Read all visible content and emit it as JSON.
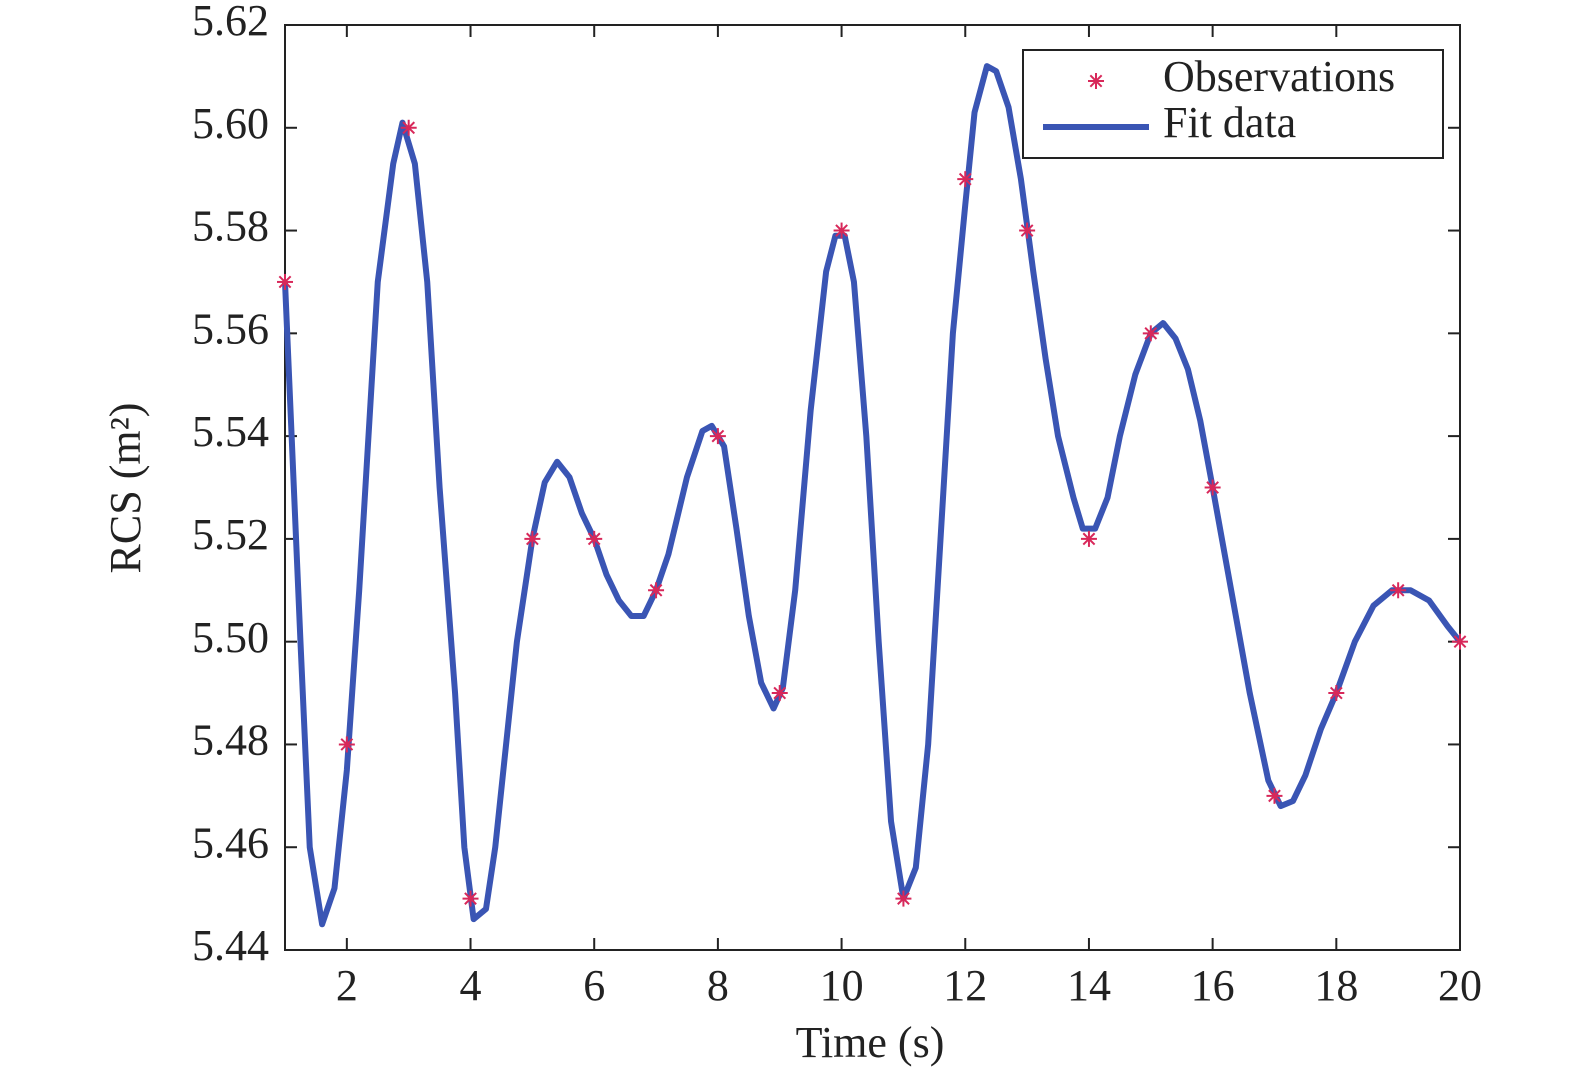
{
  "chart_data": {
    "type": "line",
    "xlabel": "Time (s)",
    "ylabel": "RCS (m²)",
    "xlim": [
      1,
      20
    ],
    "xticks": [
      2,
      4,
      6,
      8,
      10,
      12,
      14,
      16,
      18,
      20
    ],
    "ylim": [
      5.44,
      5.62
    ],
    "yticks": [
      5.44,
      5.46,
      5.48,
      {
        "value": 5.5,
        "label": "5.50"
      },
      5.52,
      5.54,
      5.56,
      5.58,
      {
        "value": 5.6,
        "label": "5.60"
      },
      5.62
    ],
    "legend": "upper right",
    "series": [
      {
        "name": "Observations",
        "type": "scatter",
        "color": "#d8285a",
        "x": [
          1,
          2,
          3,
          4,
          5,
          6,
          7,
          8,
          9,
          10,
          11,
          12,
          13,
          14,
          15,
          16,
          17,
          18,
          19,
          20
        ],
        "values": [
          5.57,
          5.48,
          5.6,
          5.45,
          5.52,
          5.52,
          5.51,
          5.54,
          5.49,
          5.58,
          5.45,
          5.59,
          5.58,
          5.52,
          5.56,
          5.53,
          5.47,
          5.49,
          5.51,
          5.5
        ]
      },
      {
        "name": "Fit data",
        "type": "line",
        "color": "#3a55b4",
        "x": [
          1,
          1.25,
          1.4,
          1.6,
          1.8,
          2,
          2.2,
          2.5,
          2.75,
          2.9,
          3.1,
          3.3,
          3.5,
          3.75,
          3.9,
          4.05,
          4.25,
          4.4,
          4.75,
          5,
          5.2,
          5.4,
          5.6,
          5.8,
          6,
          6.2,
          6.4,
          6.6,
          6.8,
          7,
          7.2,
          7.5,
          7.75,
          7.9,
          8.1,
          8.3,
          8.5,
          8.7,
          8.9,
          9.05,
          9.25,
          9.5,
          9.75,
          9.9,
          10.05,
          10.2,
          10.4,
          10.6,
          10.8,
          11,
          11.2,
          11.4,
          11.6,
          11.8,
          12,
          12.15,
          12.35,
          12.5,
          12.7,
          12.9,
          13.1,
          13.3,
          13.5,
          13.75,
          13.9,
          14.1,
          14.3,
          14.5,
          14.75,
          15,
          15.2,
          15.4,
          15.6,
          15.8,
          16,
          16.3,
          16.6,
          16.9,
          17.1,
          17.3,
          17.5,
          17.75,
          18,
          18.3,
          18.6,
          18.9,
          19.2,
          19.5,
          19.8,
          20
        ],
        "values": [
          5.57,
          5.5,
          5.46,
          5.445,
          5.452,
          5.475,
          5.51,
          5.57,
          5.593,
          5.601,
          5.593,
          5.57,
          5.53,
          5.49,
          5.46,
          5.446,
          5.448,
          5.46,
          5.5,
          5.52,
          5.531,
          5.535,
          5.532,
          5.525,
          5.52,
          5.513,
          5.508,
          5.505,
          5.505,
          5.51,
          5.517,
          5.532,
          5.541,
          5.542,
          5.538,
          5.522,
          5.505,
          5.492,
          5.487,
          5.491,
          5.51,
          5.545,
          5.572,
          5.579,
          5.579,
          5.57,
          5.54,
          5.5,
          5.465,
          5.45,
          5.456,
          5.48,
          5.52,
          5.56,
          5.585,
          5.603,
          5.612,
          5.611,
          5.604,
          5.59,
          5.572,
          5.555,
          5.54,
          5.528,
          5.522,
          5.522,
          5.528,
          5.54,
          5.552,
          5.56,
          5.562,
          5.559,
          5.553,
          5.543,
          5.53,
          5.51,
          5.49,
          5.473,
          5.468,
          5.469,
          5.474,
          5.483,
          5.49,
          5.5,
          5.507,
          5.51,
          5.51,
          5.508,
          5.503,
          5.5
        ]
      }
    ]
  }
}
